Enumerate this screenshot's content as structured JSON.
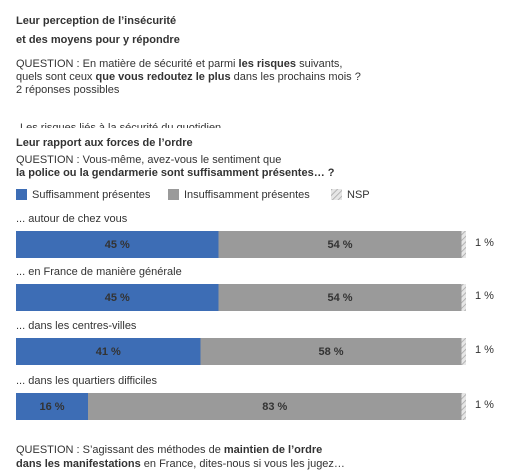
{
  "header": {
    "title_lines": [
      "Leur perception de l’insécurité",
      "et des moyens pour y répondre"
    ],
    "question_lines": [
      [
        {
          "text": "QUESTION : En matière de sécurité et parmi ",
          "bold": false
        },
        {
          "text": "les risques",
          "bold": true
        },
        {
          "text": " suivants,",
          "bold": false
        }
      ],
      [
        {
          "text": "quels sont ceux ",
          "bold": false
        },
        {
          "text": "que vous redoutez le plus",
          "bold": true
        },
        {
          "text": " dans les prochains mois ?",
          "bold": false
        }
      ],
      [
        {
          "text": "2 réponses possibles",
          "bold": false
        }
      ]
    ],
    "cut_text": "Les risques liés à la sécurité du quotidien"
  },
  "chart_data": {
    "type": "stacked-bar",
    "title": "Leur rapport aux forces de l’ordre",
    "question_lines": [
      [
        {
          "text": "QUESTION : Vous-même, avez-vous le sentiment que",
          "bold": false
        }
      ],
      [
        {
          "text": "la police ou la gendarmerie sont suffisamment présentes… ?",
          "bold": true
        }
      ]
    ],
    "categories": [
      "... autour de chez vous",
      "... en France de manière générale",
      "... dans les centres-villes",
      "... dans les quartiers difficiles"
    ],
    "series": [
      {
        "name": "Suffisamment présentes",
        "color": "#3d6db5",
        "values": [
          45,
          45,
          41,
          16
        ],
        "value_labels": [
          "45 %",
          "45 %",
          "41 %",
          "16 %"
        ]
      },
      {
        "name": "Insuffisamment présentes",
        "color": "#9a9a9a",
        "values": [
          54,
          54,
          58,
          83
        ],
        "value_labels": [
          "54 %",
          "54 %",
          "58 %",
          "83 %"
        ]
      },
      {
        "name": "NSP",
        "color": "hatch",
        "values": [
          1,
          1,
          1,
          1
        ],
        "value_labels": [
          "1 %",
          "1 %",
          "1 %",
          "1 %"
        ]
      }
    ],
    "xlim": [
      0,
      100
    ]
  },
  "footer": {
    "question_lines": [
      [
        {
          "text": "QUESTION : S’agissant des méthodes de ",
          "bold": false
        },
        {
          "text": "maintien de l’ordre",
          "bold": true
        }
      ],
      [
        {
          "text": "dans les manifestations",
          "bold": true
        },
        {
          "text": " en France, dites-nous si vous les jugez…",
          "bold": false
        }
      ]
    ]
  }
}
